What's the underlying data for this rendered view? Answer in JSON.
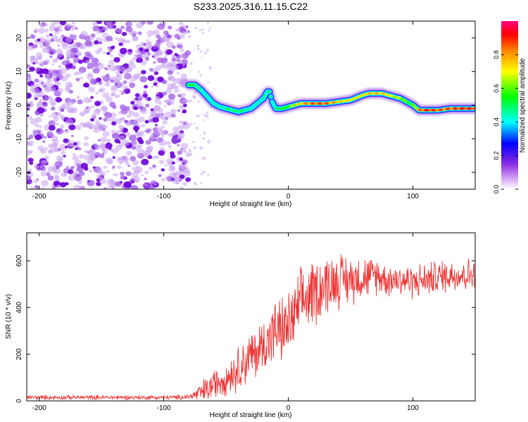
{
  "title": "S233.2025.316.11.15.C22",
  "chart_data": [
    {
      "type": "heatmap",
      "title": "S233.2025.316.11.15.C22",
      "xlabel": "Height of straight line (km)",
      "ylabel": "Frequency (Hz)",
      "xlim": [
        -210,
        150
      ],
      "ylim": [
        -25,
        25
      ],
      "xticks": [
        -200,
        -100,
        0,
        100
      ],
      "yticks": [
        -20,
        -10,
        0,
        10,
        20
      ],
      "noise_region_x": [
        -210,
        -80
      ],
      "ridge": {
        "x": [
          -80,
          -75,
          -70,
          -65,
          -60,
          -55,
          -50,
          -45,
          -40,
          -35,
          -30,
          -25,
          -20,
          -17,
          -15,
          -13,
          -10,
          -5,
          0,
          10,
          20,
          30,
          40,
          50,
          60,
          65,
          70,
          75,
          80,
          85,
          90,
          95,
          100,
          105,
          110,
          120,
          130,
          140,
          150
        ],
        "y": [
          6.0,
          6.0,
          4.5,
          2.5,
          0.5,
          -0.5,
          -1.0,
          -1.5,
          -2.0,
          -1.5,
          -1.0,
          0.5,
          2.0,
          4.0,
          4.0,
          1.0,
          -1.0,
          -1.0,
          -0.5,
          0.5,
          0.5,
          0.5,
          1.0,
          1.5,
          3.0,
          3.5,
          3.5,
          3.5,
          3.0,
          2.5,
          2.0,
          1.0,
          0.0,
          -1.5,
          -1.5,
          -1.5,
          -1.0,
          -1.0,
          -1.0
        ],
        "amplitude": [
          0.6,
          0.55,
          0.45,
          0.45,
          0.45,
          0.45,
          0.5,
          0.5,
          0.5,
          0.5,
          0.45,
          0.45,
          0.45,
          0.5,
          0.5,
          0.45,
          0.5,
          0.55,
          0.6,
          0.8,
          0.9,
          0.9,
          0.8,
          0.75,
          0.75,
          0.8,
          0.8,
          0.8,
          0.75,
          0.7,
          0.7,
          0.6,
          0.6,
          0.85,
          0.95,
          0.9,
          0.9,
          0.95,
          0.95
        ]
      },
      "colorbar": {
        "label": "Normalized spectral amplitude",
        "range": [
          0,
          1
        ],
        "ticks": [
          0.0,
          0.2,
          0.4,
          0.6,
          0.8
        ],
        "tick_labels": [
          "0.0",
          "0.2",
          "0.4",
          "0.6",
          "0.8"
        ]
      }
    },
    {
      "type": "line",
      "xlabel": "Height of straight line (km)",
      "ylabel": "SNR (10 * v/v)",
      "xlim": [
        -210,
        150
      ],
      "ylim": [
        0,
        720
      ],
      "xticks": [
        -200,
        -100,
        0,
        100
      ],
      "yticks": [
        0,
        200,
        400,
        600
      ],
      "series": [
        {
          "name": "SNR",
          "color": "#ee3333",
          "x": [
            -210,
            -200,
            -180,
            -160,
            -140,
            -120,
            -100,
            -90,
            -80,
            -75,
            -70,
            -65,
            -60,
            -55,
            -50,
            -45,
            -40,
            -35,
            -30,
            -25,
            -20,
            -15,
            -10,
            -5,
            0,
            5,
            10,
            15,
            20,
            25,
            30,
            35,
            40,
            45,
            50,
            55,
            60,
            65,
            70,
            75,
            80,
            90,
            100,
            110,
            120,
            130,
            140,
            150
          ],
          "y": [
            15,
            15,
            15,
            15,
            15,
            15,
            15,
            15,
            18,
            25,
            35,
            50,
            70,
            90,
            100,
            120,
            140,
            170,
            190,
            210,
            240,
            270,
            300,
            300,
            320,
            360,
            420,
            440,
            470,
            480,
            500,
            510,
            520,
            520,
            520,
            530,
            530,
            530,
            540,
            530,
            520,
            520,
            510,
            520,
            530,
            540,
            540,
            540
          ],
          "amplitude": [
            8,
            8,
            8,
            8,
            8,
            8,
            8,
            8,
            10,
            20,
            40,
            50,
            50,
            60,
            60,
            70,
            80,
            90,
            90,
            100,
            100,
            110,
            110,
            120,
            120,
            120,
            120,
            120,
            120,
            120,
            110,
            100,
            100,
            90,
            90,
            80,
            80,
            70,
            70,
            60,
            60,
            60,
            60,
            60,
            60,
            60,
            60,
            60
          ]
        }
      ]
    }
  ]
}
